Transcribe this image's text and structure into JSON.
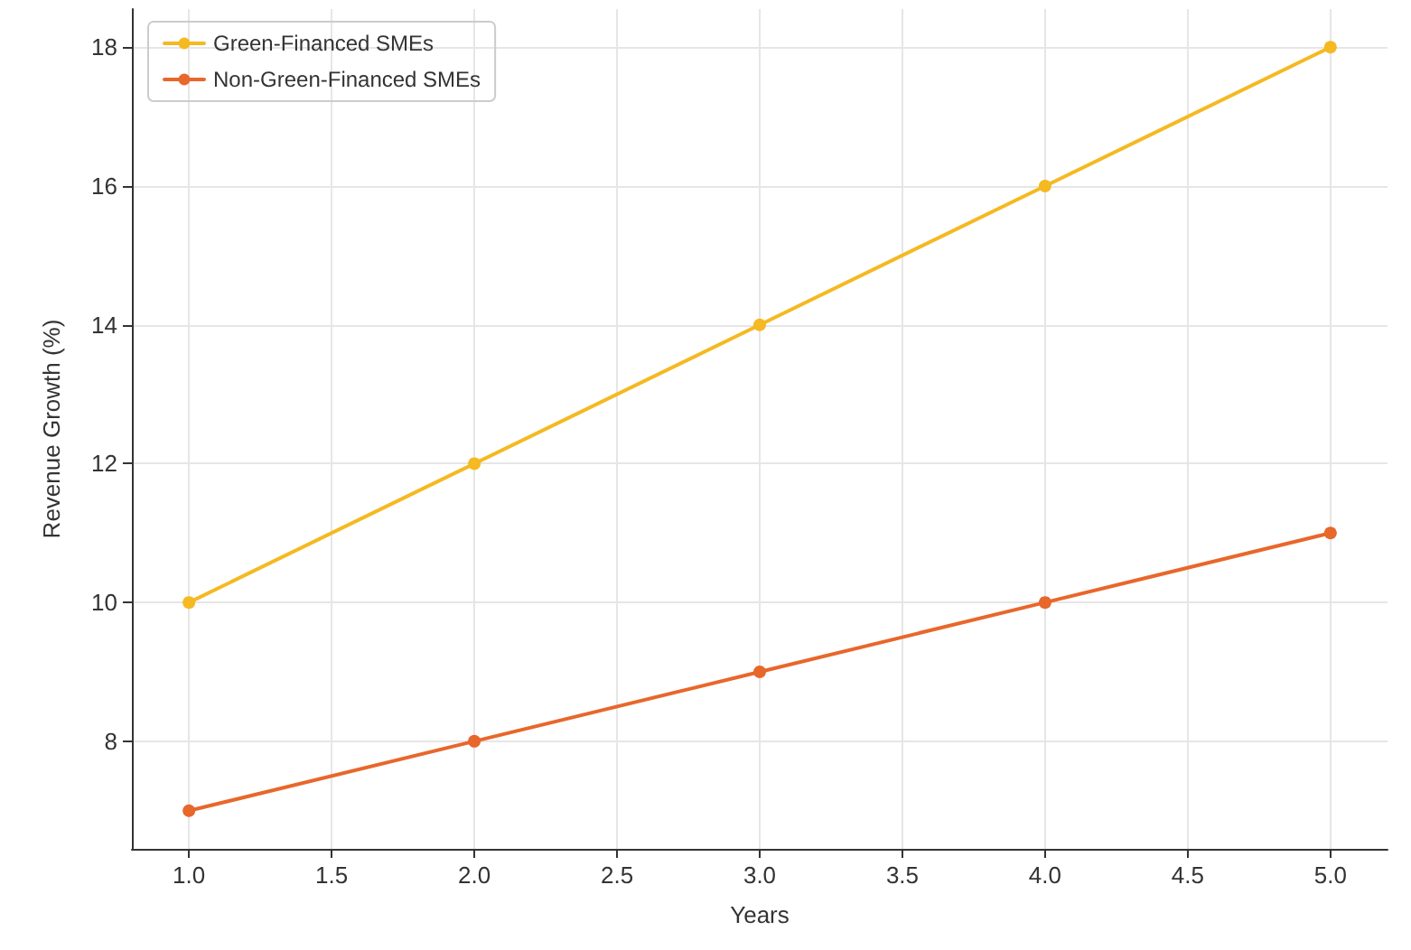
{
  "chart_data": {
    "type": "line",
    "xlabel": "Years",
    "ylabel": "Revenue Growth (%)",
    "x": [
      1,
      2,
      3,
      4,
      5
    ],
    "series": [
      {
        "name": "Green-Financed SMEs",
        "color": "#f5b921",
        "values": [
          10,
          12,
          14,
          16,
          18
        ]
      },
      {
        "name": "Non-Green-Financed SMEs",
        "color": "#e8672b",
        "values": [
          7,
          8,
          9,
          10,
          11
        ]
      }
    ],
    "xlim": [
      0.8,
      5.2
    ],
    "xticks": [
      {
        "value": 1,
        "label": "1.0"
      },
      {
        "value": 1.5,
        "label": "1.5"
      },
      {
        "value": 2,
        "label": "2.0"
      },
      {
        "value": 2.5,
        "label": "2.5"
      },
      {
        "value": 3,
        "label": "3.0"
      },
      {
        "value": 3.5,
        "label": "3.5"
      },
      {
        "value": 4,
        "label": "4.0"
      },
      {
        "value": 4.5,
        "label": "4.5"
      },
      {
        "value": 5,
        "label": "5.0"
      }
    ],
    "ylim": [
      6.45,
      18.55
    ],
    "yticks": [
      8,
      10,
      12,
      14,
      16,
      18
    ],
    "grid": true,
    "legend": "top left",
    "marker": "circle",
    "line_style": "solid"
  }
}
